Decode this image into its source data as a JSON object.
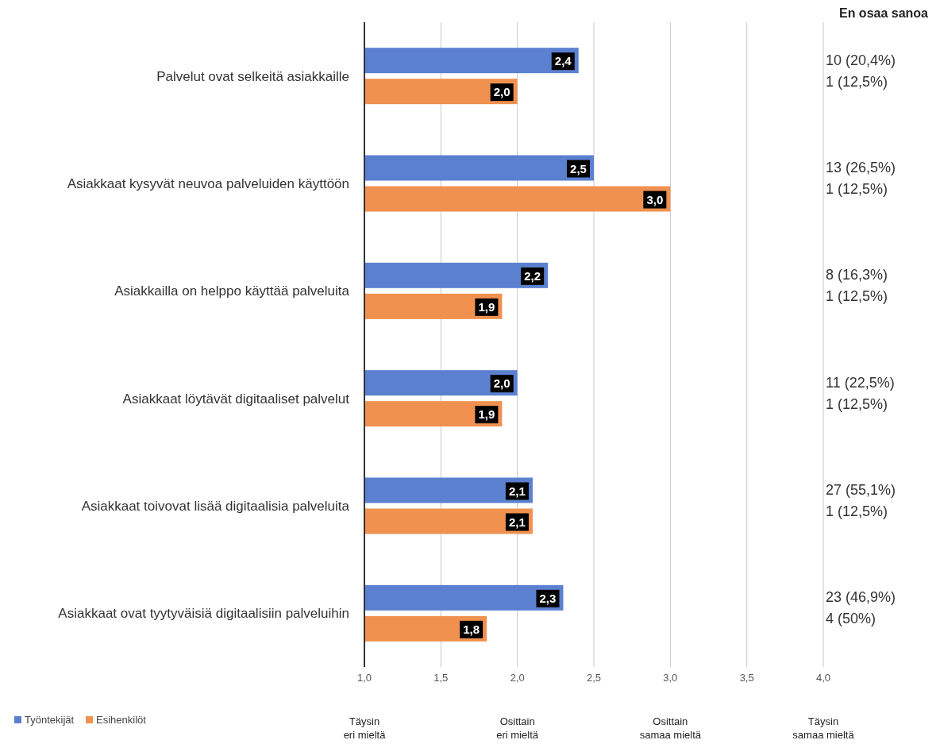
{
  "chart_data": {
    "type": "bar",
    "orientation": "horizontal",
    "categories": [
      "Palvelut ovat selkeitä asiakkaille",
      "Asiakkaat kysyvät neuvoa palveluiden käyttöön",
      "Asiakkailla on helppo käyttää palveluita",
      "Asiakkaat löytävät digitaaliset palvelut",
      "Asiakkaat toivovat lisää digitaalisia palveluita",
      "Asiakkaat ovat tyytyväisiä digitaalisiin palveluihin"
    ],
    "series": [
      {
        "name": "Työntekijät",
        "color": "#5b80d0",
        "values": [
          2.4,
          2.5,
          2.2,
          2.0,
          2.1,
          2.3
        ],
        "value_labels": [
          "2,4",
          "2,5",
          "2,2",
          "2,0",
          "2,1",
          "2,3"
        ]
      },
      {
        "name": "Esihenkilöt",
        "color": "#f0914f",
        "values": [
          2.0,
          3.0,
          1.9,
          1.9,
          2.1,
          1.8
        ],
        "value_labels": [
          "2,0",
          "3,0",
          "1,9",
          "1,9",
          "2,1",
          "1,8"
        ]
      }
    ],
    "xlim": [
      1,
      4
    ],
    "xticks": [
      {
        "value": 1,
        "label": "1,0"
      },
      {
        "value": 1.5,
        "label": "1,5"
      },
      {
        "value": 2,
        "label": "2,0"
      },
      {
        "value": 2.5,
        "label": "2,5"
      },
      {
        "value": 3,
        "label": "3,0"
      },
      {
        "value": 3.5,
        "label": "3,5"
      },
      {
        "value": 4,
        "label": "4,0"
      }
    ],
    "grid": "x",
    "legend": "bottom left",
    "annotations": [
      "Täysin eri mieltä",
      "Osittain eri mieltä",
      "Osittain samaa mieltä",
      "Täysin samaa mieltä",
      "En osaa sanoa",
      "10 (20,4%)",
      "1 (12,5%)",
      "13 (26,5%)",
      "1 (12,5%)",
      "8 (16,3%)",
      "1 (12,5%)",
      "11 (22,5%)",
      "1 (12,5%)",
      "27 (55,1%)",
      "1 (12,5%)",
      "23 (46,9%)",
      "4 (50%)"
    ]
  }
}
